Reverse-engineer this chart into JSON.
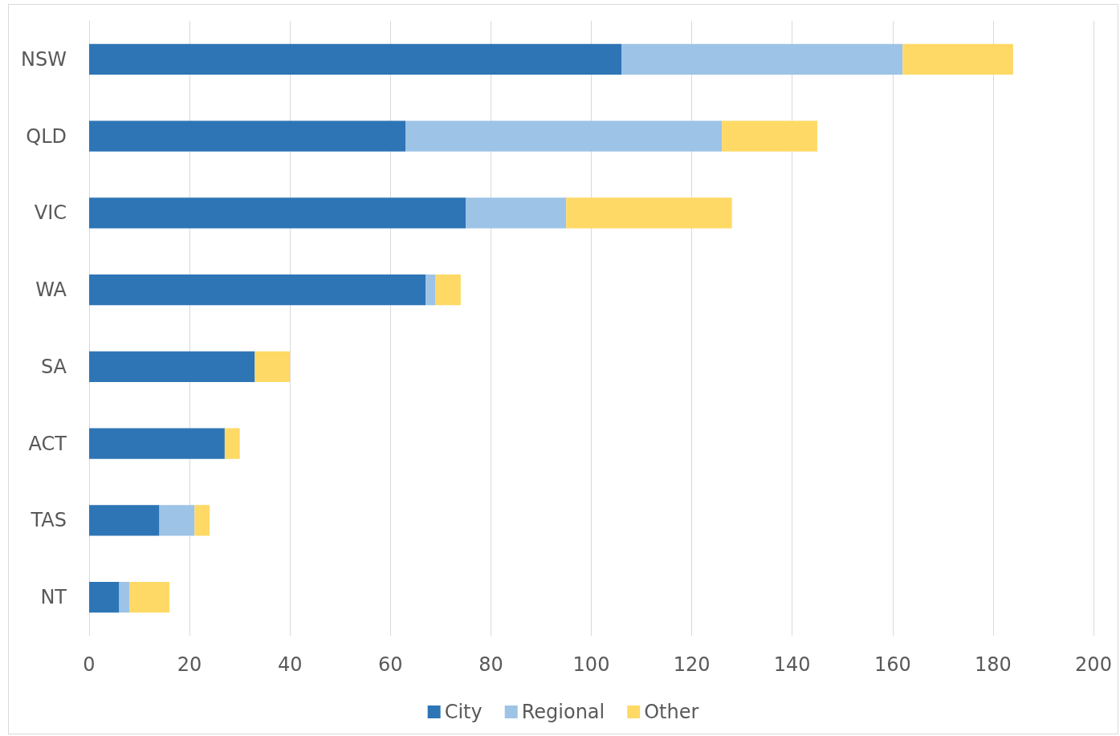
{
  "chart_data": {
    "type": "bar",
    "orientation": "horizontal",
    "stacked": true,
    "categories": [
      "NSW",
      "QLD",
      "VIC",
      "WA",
      "SA",
      "ACT",
      "TAS",
      "NT"
    ],
    "series": [
      {
        "name": "City",
        "color": "#2e75b6",
        "values": [
          106,
          63,
          75,
          67,
          33,
          27,
          14,
          6
        ]
      },
      {
        "name": "Regional",
        "color": "#9dc3e6",
        "values": [
          56,
          63,
          20,
          2,
          0,
          0,
          7,
          2
        ]
      },
      {
        "name": "Other",
        "color": "#ffd966",
        "values": [
          22,
          19,
          33,
          5,
          7,
          3,
          3,
          8
        ]
      }
    ],
    "xlim": [
      0,
      200
    ],
    "xticks": [
      0,
      20,
      40,
      60,
      80,
      100,
      120,
      140,
      160,
      180,
      200
    ],
    "grid": "x",
    "legend": "bottom"
  }
}
